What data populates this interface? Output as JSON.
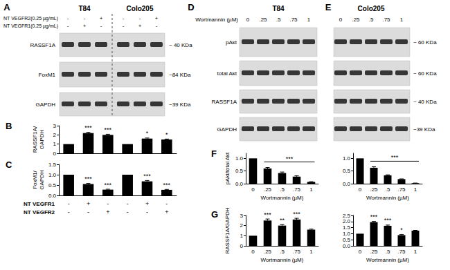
{
  "blot_panels": [
    {
      "panel_label": "A",
      "groups": [
        "T84",
        "Colo205"
      ],
      "treatments": [
        {
          "label": "NT VEGFR2(0.25 µg/mL)",
          "signs": [
            "-",
            "-",
            "+",
            "-",
            "-",
            "+"
          ]
        },
        {
          "label": "NT VEGFR1(0.25 µg/mL)",
          "signs": [
            "-",
            "+",
            "-",
            "-",
            "+",
            "-"
          ]
        }
      ],
      "rows": [
        {
          "label": "RASSF1A",
          "mw": "~ 40 KDa"
        },
        {
          "label": "FoxM1",
          "mw": "~84 KDa"
        },
        {
          "label": "GAPDH",
          "mw": "~39 KDa"
        }
      ]
    },
    {
      "panel_label": "D",
      "groups": [
        "T84"
      ],
      "dose_label": "Wortmannin (µM)",
      "doses": [
        "0",
        ".25",
        ".5",
        ".75",
        "1"
      ],
      "rows": [
        {
          "label": "pAkt"
        },
        {
          "label": "total Akt"
        },
        {
          "label": "RASSF1A"
        },
        {
          "label": "GAPDH"
        }
      ]
    },
    {
      "panel_label": "E",
      "groups": [
        "Colo205"
      ],
      "doses": [
        "0",
        ".25",
        ".5",
        ".75",
        "1"
      ],
      "rows": [
        {
          "mw": "~ 60 KDa"
        },
        {
          "mw": "~ 60 KDa"
        },
        {
          "mw": "~ 40 KDa"
        },
        {
          "mw": "~39 KDa"
        }
      ]
    }
  ],
  "chart_data": [
    {
      "panel_label": "B",
      "type": "bar",
      "categories": [
        null,
        null,
        null,
        null,
        null,
        null
      ],
      "values": [
        1,
        2.2,
        2.0,
        1,
        1.6,
        1.5
      ],
      "errors": [
        0,
        0.08,
        0.07,
        0,
        0.06,
        0.05
      ],
      "annotations": [
        null,
        "***",
        "***",
        null,
        "*",
        "*"
      ],
      "ylabel": "RASSF1A/\nGAPDH",
      "ylim": [
        0,
        3
      ],
      "yticks": [
        0,
        1,
        2,
        3
      ],
      "color": "#000000",
      "grid": false,
      "tick_labels": "y"
    },
    {
      "panel_label": "C",
      "type": "bar",
      "categories": [
        null,
        null,
        null,
        null,
        null,
        null
      ],
      "values": [
        1,
        0.55,
        0.28,
        1,
        0.68,
        0.27
      ],
      "errors": [
        0,
        0.03,
        0.02,
        0,
        0.04,
        0.02
      ],
      "annotations": [
        null,
        "***",
        "***",
        null,
        "***",
        "***"
      ],
      "ylabel": "FoxM1/\nGAPDH",
      "ylim": [
        0,
        1.5
      ],
      "yticks": [
        {
          "value": 0,
          "label": "0.0"
        },
        0.5,
        {
          "value": 1,
          "label": "1.0"
        },
        1.5
      ],
      "treatments": [
        {
          "label": "NT VEGFR1",
          "signs": [
            "-",
            "+",
            "-",
            "-",
            "+",
            "-"
          ]
        },
        {
          "label": "NT VEGFR2",
          "signs": [
            "-",
            "-",
            "+",
            "-",
            "-",
            "+"
          ]
        }
      ],
      "color": "#000000",
      "grid": false,
      "tick_labels": "y"
    },
    {
      "panel_label": "F",
      "type": "bar",
      "categories": [
        "0",
        ".25",
        ".5",
        ".75",
        "1"
      ],
      "values": [
        1,
        0.6,
        0.42,
        0.28,
        0.07
      ],
      "errors": [
        0,
        0.04,
        0.04,
        0.03,
        0.01
      ],
      "bracket": {
        "text": "***",
        "span": [
          ".25",
          "1"
        ]
      },
      "xlabel": "Wortmannin (µM)",
      "ylabel": "pAkt/total Akt",
      "ylim": [
        0,
        1.2
      ],
      "yticks": [
        {
          "value": 0,
          "label": "0.0"
        },
        0.5,
        {
          "value": 1,
          "label": "1.0"
        }
      ],
      "color": "#000000",
      "grid": false
    },
    {
      "type": "bar",
      "categories": [
        "0",
        ".25",
        ".5",
        ".75",
        "1"
      ],
      "values": [
        1,
        0.63,
        0.33,
        0.18,
        0.02
      ],
      "errors": [
        0,
        0.04,
        0.02,
        0.01,
        0.005
      ],
      "bracket": {
        "text": "***",
        "span": [
          ".25",
          "1"
        ]
      },
      "xlabel": "Wortmannin (µM)",
      "ylim": [
        0,
        1.2
      ],
      "yticks": [
        {
          "value": 0,
          "label": "0.0"
        },
        0.5,
        {
          "value": 1,
          "label": "1.0"
        }
      ],
      "color": "#000000",
      "grid": false
    },
    {
      "panel_label": "G",
      "type": "bar",
      "categories": [
        "0",
        ".25",
        ".5",
        ".75",
        "1"
      ],
      "values": [
        1,
        2.5,
        2.0,
        2.6,
        1.6
      ],
      "errors": [
        0,
        0.15,
        0.1,
        0.12,
        0.05
      ],
      "annotations": [
        null,
        "***",
        "**",
        "***",
        null
      ],
      "xlabel": "Wortmannin (µM)",
      "ylabel": "RASSF1A/GAPDH",
      "ylim": [
        0,
        3
      ],
      "yticks": [
        0,
        1,
        2,
        3
      ],
      "color": "#000000",
      "grid": false
    },
    {
      "type": "bar",
      "categories": [
        "0",
        ".25",
        ".5",
        ".75",
        "1"
      ],
      "values": [
        1,
        1.95,
        1.65,
        0.88,
        1.25
      ],
      "errors": [
        0,
        0.06,
        0.06,
        0.05,
        0.03
      ],
      "annotations": [
        null,
        "***",
        "***",
        "*",
        null
      ],
      "xlabel": "Wortmannin (µM)",
      "ylim": [
        0,
        2.5
      ],
      "yticks": [
        {
          "value": 0,
          "label": "0.0"
        },
        0.5,
        {
          "value": 1,
          "label": "1.0"
        },
        1.5,
        {
          "value": 2,
          "label": "2.0"
        },
        2.5
      ],
      "color": "#000000",
      "grid": false
    }
  ]
}
